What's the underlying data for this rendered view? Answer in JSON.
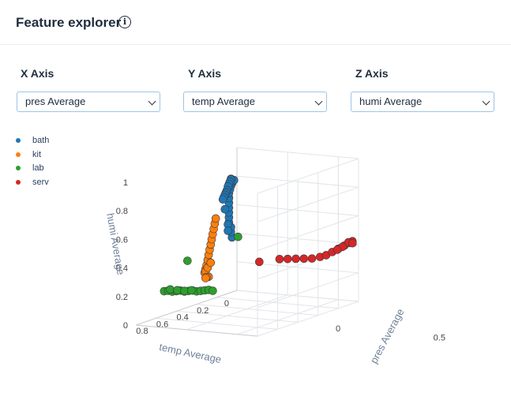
{
  "header": {
    "title": "Feature explorer",
    "info_icon": "info-icon",
    "info_glyph": "i"
  },
  "controls": {
    "x": {
      "label": "X Axis",
      "value": "pres Average"
    },
    "y": {
      "label": "Y Axis",
      "value": "temp Average"
    },
    "z": {
      "label": "Z Axis",
      "value": "humi Average"
    }
  },
  "chart_data": {
    "type": "scatter3d",
    "axes": {
      "x": {
        "title": "pres Average",
        "range": [
          0,
          0.6
        ],
        "ticks": [
          "0",
          "0.5"
        ]
      },
      "y": {
        "title": "temp Average",
        "range": [
          0,
          1
        ],
        "ticks": [
          "0",
          "0.2",
          "0.4",
          "0.6",
          "0.8"
        ]
      },
      "z": {
        "title": "humi Average",
        "range": [
          0,
          1
        ],
        "ticks": [
          "0",
          "0.2",
          "0.4",
          "0.6",
          "0.8",
          "1"
        ]
      }
    },
    "legend_position": "top-left",
    "grid": true,
    "series": [
      {
        "name": "bath",
        "color": "#1f77b4",
        "points": [
          [
            0.19,
            0.43,
            0.5
          ],
          [
            0.19,
            0.44,
            0.54
          ],
          [
            0.2,
            0.46,
            0.58
          ],
          [
            0.2,
            0.48,
            0.62
          ],
          [
            0.21,
            0.5,
            0.66
          ],
          [
            0.22,
            0.52,
            0.7
          ],
          [
            0.23,
            0.54,
            0.74
          ],
          [
            0.24,
            0.56,
            0.78
          ],
          [
            0.25,
            0.58,
            0.82
          ],
          [
            0.26,
            0.6,
            0.86
          ],
          [
            0.27,
            0.61,
            0.89
          ],
          [
            0.28,
            0.62,
            0.92
          ],
          [
            0.29,
            0.63,
            0.94
          ],
          [
            0.3,
            0.64,
            0.96
          ],
          [
            0.31,
            0.65,
            0.97
          ],
          [
            0.3,
            0.66,
            0.98
          ],
          [
            0.29,
            0.64,
            0.97
          ],
          [
            0.28,
            0.63,
            0.95
          ],
          [
            0.27,
            0.62,
            0.93
          ],
          [
            0.26,
            0.61,
            0.91
          ],
          [
            0.25,
            0.6,
            0.88
          ],
          [
            0.24,
            0.59,
            0.86
          ],
          [
            0.23,
            0.58,
            0.84
          ],
          [
            0.22,
            0.57,
            0.82
          ],
          [
            0.21,
            0.56,
            0.8
          ],
          [
            0.2,
            0.52,
            0.72
          ],
          [
            0.19,
            0.47,
            0.6
          ],
          [
            0.18,
            0.45,
            0.55
          ]
        ]
      },
      {
        "name": "kit",
        "color": "#ff7f0e",
        "points": [
          [
            0.03,
            0.38,
            0.22
          ],
          [
            0.04,
            0.39,
            0.25
          ],
          [
            0.05,
            0.4,
            0.28
          ],
          [
            0.06,
            0.41,
            0.32
          ],
          [
            0.07,
            0.42,
            0.36
          ],
          [
            0.08,
            0.43,
            0.4
          ],
          [
            0.09,
            0.44,
            0.44
          ],
          [
            0.1,
            0.45,
            0.48
          ],
          [
            0.11,
            0.46,
            0.52
          ],
          [
            0.12,
            0.47,
            0.56
          ],
          [
            0.13,
            0.48,
            0.6
          ],
          [
            0.14,
            0.49,
            0.64
          ],
          [
            0.05,
            0.41,
            0.24
          ],
          [
            0.06,
            0.4,
            0.2
          ],
          [
            0.04,
            0.38,
            0.19
          ],
          [
            0.03,
            0.37,
            0.18
          ],
          [
            0.05,
            0.39,
            0.26
          ],
          [
            0.07,
            0.4,
            0.3
          ]
        ]
      },
      {
        "name": "lab",
        "color": "#2ca02c",
        "points": [
          [
            0.05,
            0.82,
            0.2
          ],
          [
            0.06,
            0.8,
            0.2
          ],
          [
            0.07,
            0.78,
            0.19
          ],
          [
            0.08,
            0.76,
            0.19
          ],
          [
            0.09,
            0.74,
            0.19
          ],
          [
            0.1,
            0.72,
            0.18
          ],
          [
            0.11,
            0.7,
            0.18
          ],
          [
            0.12,
            0.68,
            0.18
          ],
          [
            0.13,
            0.66,
            0.17
          ],
          [
            0.14,
            0.64,
            0.17
          ],
          [
            0.15,
            0.62,
            0.17
          ],
          [
            0.16,
            0.6,
            0.17
          ],
          [
            0.17,
            0.58,
            0.16
          ],
          [
            0.07,
            0.8,
            0.21
          ],
          [
            0.09,
            0.77,
            0.2
          ],
          [
            0.11,
            0.74,
            0.19
          ],
          [
            0.13,
            0.71,
            0.19
          ],
          [
            0.12,
            0.73,
            0.4
          ],
          [
            0.24,
            0.47,
            0.52
          ]
        ]
      },
      {
        "name": "serv",
        "color": "#d62728",
        "points": [
          [
            0.33,
            0.24,
            0.32
          ],
          [
            0.36,
            0.22,
            0.32
          ],
          [
            0.39,
            0.2,
            0.32
          ],
          [
            0.42,
            0.18,
            0.32
          ],
          [
            0.45,
            0.16,
            0.32
          ],
          [
            0.48,
            0.14,
            0.33
          ],
          [
            0.5,
            0.12,
            0.34
          ],
          [
            0.52,
            0.1,
            0.36
          ],
          [
            0.54,
            0.08,
            0.38
          ],
          [
            0.56,
            0.06,
            0.4
          ],
          [
            0.58,
            0.05,
            0.42
          ],
          [
            0.59,
            0.04,
            0.43
          ],
          [
            0.57,
            0.04,
            0.42
          ],
          [
            0.55,
            0.06,
            0.39
          ],
          [
            0.53,
            0.07,
            0.37
          ],
          [
            0.58,
            0.02,
            0.41
          ],
          [
            0.25,
            0.28,
            0.3
          ]
        ]
      }
    ]
  }
}
